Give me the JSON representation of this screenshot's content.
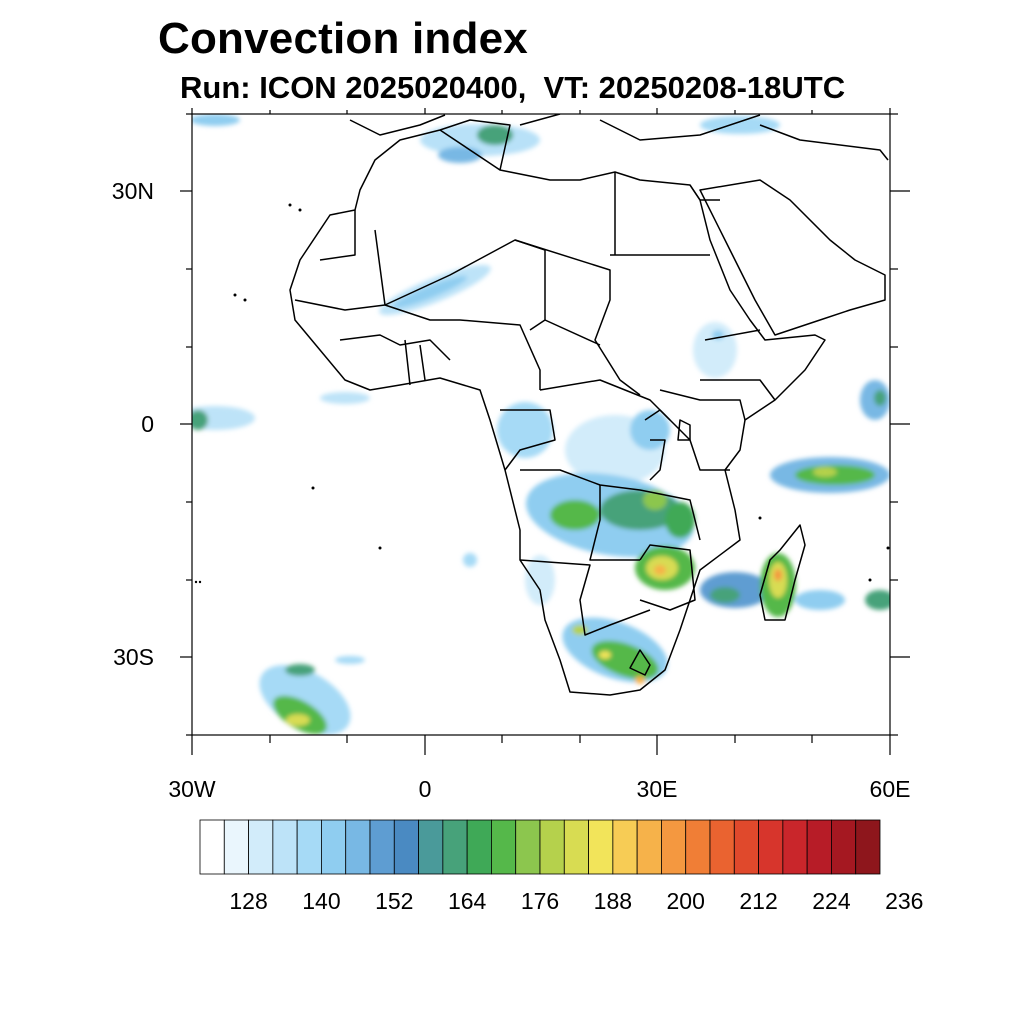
{
  "title": "Convection index",
  "subtitle": "Run: ICON 2025020400,  VT: 20250208-18UTC",
  "map": {
    "region": "Africa",
    "lon_range": [
      -30,
      60
    ],
    "lat_range": [
      -40,
      40
    ],
    "y_ticks": [
      "30N",
      "0",
      "30S"
    ],
    "x_ticks": [
      "30W",
      "0",
      "30E",
      "60E"
    ],
    "ocean_color": "#ffffff",
    "border_color": "#000000"
  },
  "colorbar": {
    "labels": [
      "128",
      "140",
      "152",
      "164",
      "176",
      "188",
      "200",
      "212",
      "224",
      "236"
    ],
    "colors": [
      "#ffffff",
      "#eaf6fd",
      "#d2ecfa",
      "#bde3f8",
      "#a6daf6",
      "#8fcdf0",
      "#78b8e4",
      "#5e9dd2",
      "#4a8ac2",
      "#4a9a9a",
      "#47a27a",
      "#3fa957",
      "#55b84a",
      "#8cc64e",
      "#b5d14c",
      "#d8dc52",
      "#f2e45a",
      "#f7cc55",
      "#f6b24a",
      "#f49840",
      "#f07e36",
      "#ea6330",
      "#e0492c",
      "#d7352c",
      "#c9262b",
      "#b71c27",
      "#a51821",
      "#8e161c"
    ]
  }
}
